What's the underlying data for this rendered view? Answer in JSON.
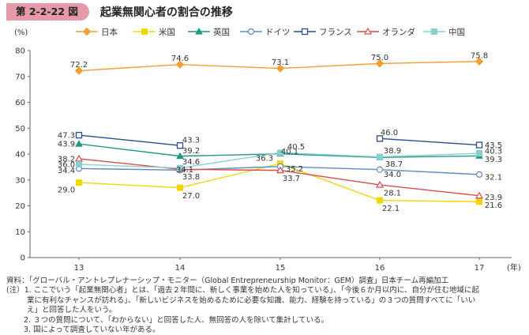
{
  "figure": {
    "number": "第 2-2-22 図",
    "title": "起業無関心者の割合の推移"
  },
  "chart_data": {
    "type": "line",
    "title": "起業無関心者の割合の推移",
    "ylabel": "(%)",
    "xlabel": "(年)",
    "ylim": [
      0,
      80
    ],
    "yticks": [
      0,
      10,
      20,
      30,
      40,
      50,
      60,
      70,
      80
    ],
    "categories": [
      "13",
      "14",
      "15",
      "16",
      "17"
    ],
    "grid": false,
    "legend_position": "top",
    "series": [
      {
        "name": "日本",
        "color": "#f0a030",
        "marker": "diamond",
        "values": [
          72.2,
          74.6,
          73.1,
          75.0,
          75.8
        ]
      },
      {
        "name": "米国",
        "color": "#f2d600",
        "marker": "square-filled",
        "values": [
          29.0,
          27.0,
          36.3,
          22.1,
          21.6
        ]
      },
      {
        "name": "英国",
        "color": "#1e9a80",
        "marker": "triangle-filled",
        "values": [
          43.9,
          39.2,
          40.1,
          38.7,
          39.3
        ]
      },
      {
        "name": "ドイツ",
        "color": "#5a8ac6",
        "marker": "circle-open",
        "values": [
          34.4,
          33.8,
          35.2,
          34.0,
          32.1
        ]
      },
      {
        "name": "フランス",
        "color": "#2a4a90",
        "marker": "square-open",
        "values": [
          47.3,
          43.3,
          null,
          46.0,
          43.5
        ]
      },
      {
        "name": "オランダ",
        "color": "#e04848",
        "marker": "triangle-open",
        "values": [
          38.2,
          34.1,
          33.7,
          28.1,
          23.9
        ]
      },
      {
        "name": "中国",
        "color": "#88cfd0",
        "marker": "square-filled",
        "values": [
          36.0,
          34.6,
          40.5,
          38.9,
          40.3
        ]
      }
    ],
    "data_labels": [
      {
        "series": 0,
        "index": 0,
        "text": "72.2"
      },
      {
        "series": 0,
        "index": 1,
        "text": "74.6"
      },
      {
        "series": 0,
        "index": 2,
        "text": "73.1"
      },
      {
        "series": 0,
        "index": 3,
        "text": "75.0"
      },
      {
        "series": 0,
        "index": 4,
        "text": "75.8"
      },
      {
        "series": 4,
        "index": 0,
        "text": "47.3"
      },
      {
        "series": 2,
        "index": 0,
        "text": "43.9"
      },
      {
        "series": 5,
        "index": 0,
        "text": "38.2"
      },
      {
        "series": 6,
        "index": 0,
        "text": "36.0"
      },
      {
        "series": 3,
        "index": 0,
        "text": "34.4"
      },
      {
        "series": 1,
        "index": 0,
        "text": "29.0"
      },
      {
        "series": 4,
        "index": 1,
        "text": "43.3"
      },
      {
        "series": 2,
        "index": 1,
        "text": "39.2"
      },
      {
        "series": 6,
        "index": 1,
        "text": "34.6"
      },
      {
        "series": 5,
        "index": 1,
        "text": "34.1"
      },
      {
        "series": 3,
        "index": 1,
        "text": "33.8"
      },
      {
        "series": 1,
        "index": 1,
        "text": "27.0"
      },
      {
        "series": 6,
        "index": 2,
        "text": "40.5"
      },
      {
        "series": 2,
        "index": 2,
        "text": "40.1"
      },
      {
        "series": 1,
        "index": 2,
        "text": "36.3"
      },
      {
        "series": 3,
        "index": 2,
        "text": "35.2"
      },
      {
        "series": 5,
        "index": 2,
        "text": "33.7"
      },
      {
        "series": 4,
        "index": 3,
        "text": "46.0"
      },
      {
        "series": 6,
        "index": 3,
        "text": "38.9"
      },
      {
        "series": 2,
        "index": 3,
        "text": "38.7"
      },
      {
        "series": 3,
        "index": 3,
        "text": "34.0"
      },
      {
        "series": 5,
        "index": 3,
        "text": "28.1"
      },
      {
        "series": 1,
        "index": 3,
        "text": "22.1"
      },
      {
        "series": 4,
        "index": 4,
        "text": "43.5"
      },
      {
        "series": 6,
        "index": 4,
        "text": "40.3"
      },
      {
        "series": 2,
        "index": 4,
        "text": "39.3"
      },
      {
        "series": 3,
        "index": 4,
        "text": "32.1"
      },
      {
        "series": 5,
        "index": 4,
        "text": "23.9"
      },
      {
        "series": 1,
        "index": 4,
        "text": "21.6"
      }
    ]
  },
  "notes": {
    "source": "資料：「グローバル・アントレプレナーシップ・モニター（Global Entrepreneurship Monitor：GEM）調査」日本チーム再編加工",
    "note1_a": "(注）1. ここでいう「起業無関心者」とは、「過去２年間に、新しく事業を始めた人を知っている」、「今後６か月以内に、自分が住む地域に起",
    "note1_b": "業に有利なチャンスが訪れる」、「新しいビジネスを始めるために必要な知識、能力、経験を持っている」の３つの質問すべてに「いい",
    "note1_c": "え」と回答した人をいう。",
    "note2": "2. ３つの質問について、「わからない」と回答した人、無回答の人を除いて集計している。",
    "note3": "3. 国によって調査していない年がある。"
  }
}
